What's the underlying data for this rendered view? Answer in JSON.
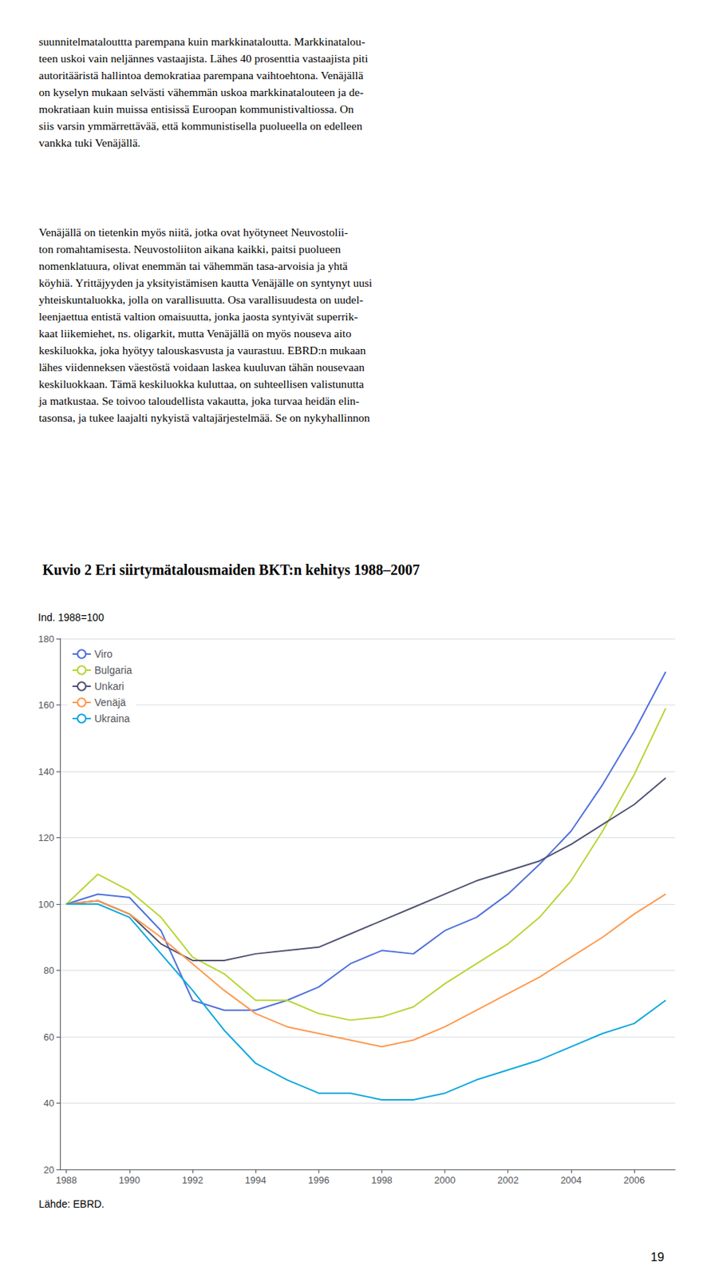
{
  "chart_data": {
    "type": "line",
    "title": "Kuvio 2 Eri siirtymätalousmaiden BKT:n kehitys 1988–2007",
    "ylabel": "Ind. 1988=100",
    "annotations": [
      "suunnitelmatalouttta parempana kuin markkinataloutta. Markkinatalou-\nteen uskoi vain neljännes vastaajista. Lähes 40 prosenttia vastaajista piti\nautoritääristä hallintoa demokratiaa parempana vaihtoehtona. Venäjällä\non kyselyn mukaan selvästi vähemmän uskoa markkinatalouteen ja de-\nmokratiaan kuin muissa entisissä Euroopan kommunistivaltiossa. On\nsiis varsin ymmärrettävää, että kommunistisella puolueella on edelleen\nvankka tuki Venäjällä.",
      "Venäjällä on tietenkin myös niitä, jotka ovat hyötyneet Neuvostolii-\nton romahtamisesta. Neuvostoliiton aikana kaikki, paitsi puolueen\nnomenklatuura, olivat enemmän tai vähemmän tasa-arvoisia ja yhtä\nköyhiä. Yrittäjyyden ja yksityistämisen kautta Venäjälle on syntynyt uusi\nyhteiskuntaluokka, jolla on varallisuutta. Osa varallisuudesta on uudel-\nleenjaettua entistä valtion omaisuutta, jonka jaosta syntyivät superrik-\nkaat liikemiehet, ns. oligarkit, mutta Venäjällä on myös nouseva aito\nkeskiluokka, joka hyötyy talouskasvusta ja vaurastuu. EBRD:n mukaan\nlähes viidenneksen väestöstä voidaan laskea kuuluvan tähän nousevaan\nkeskiluokkaan. Tämä keskiluokka kuluttaa, on suhteellisen valistunutta\nja matkustaa. Se toivoo taloudellista vakautta, joka turvaa heidän elin-\ntasonsa, ja tukee laajalti nykyistä valtajärjestelmää. Se on nykyhallinnon",
      "Lähde: EBRD.",
      "19"
    ],
    "x": [
      1988,
      1989,
      1990,
      1991,
      1992,
      1993,
      1994,
      1995,
      1996,
      1997,
      1998,
      1999,
      2000,
      2001,
      2002,
      2003,
      2004,
      2005,
      2006,
      2007
    ],
    "series": [
      {
        "name": "Viro",
        "values": [
          100,
          103,
          102,
          92,
          71,
          68,
          68,
          71,
          75,
          82,
          86,
          85,
          92,
          96,
          103,
          112,
          122,
          136,
          152,
          170
        ]
      },
      {
        "name": "Bulgaria",
        "values": [
          100,
          109,
          104,
          96,
          84,
          79,
          71,
          71,
          67,
          65,
          66,
          69,
          76,
          82,
          88,
          96,
          107,
          122,
          139,
          159
        ]
      },
      {
        "name": "Unkari",
        "values": [
          100,
          101,
          97,
          88,
          83,
          83,
          85,
          86,
          87,
          91,
          95,
          99,
          103,
          107,
          110,
          113,
          118,
          124,
          130,
          138
        ]
      },
      {
        "name": "Venäjä",
        "values": [
          100,
          101,
          97,
          90,
          82,
          74,
          67,
          63,
          61,
          59,
          57,
          59,
          63,
          68,
          73,
          78,
          84,
          90,
          97,
          103
        ]
      },
      {
        "name": "Ukraina",
        "values": [
          100,
          100,
          96,
          85,
          74,
          62,
          52,
          47,
          43,
          43,
          41,
          41,
          43,
          47,
          50,
          53,
          57,
          61,
          64,
          71
        ]
      }
    ],
    "xlim": [
      1987.8,
      2007.3
    ],
    "xticks": [
      1988,
      1990,
      1992,
      1994,
      1996,
      1998,
      2000,
      2002,
      2004,
      2006
    ],
    "ylim": [
      20,
      180
    ],
    "yticks": [
      20,
      40,
      60,
      80,
      100,
      120,
      140,
      160,
      180
    ],
    "grid": true,
    "legend": "upper left"
  }
}
